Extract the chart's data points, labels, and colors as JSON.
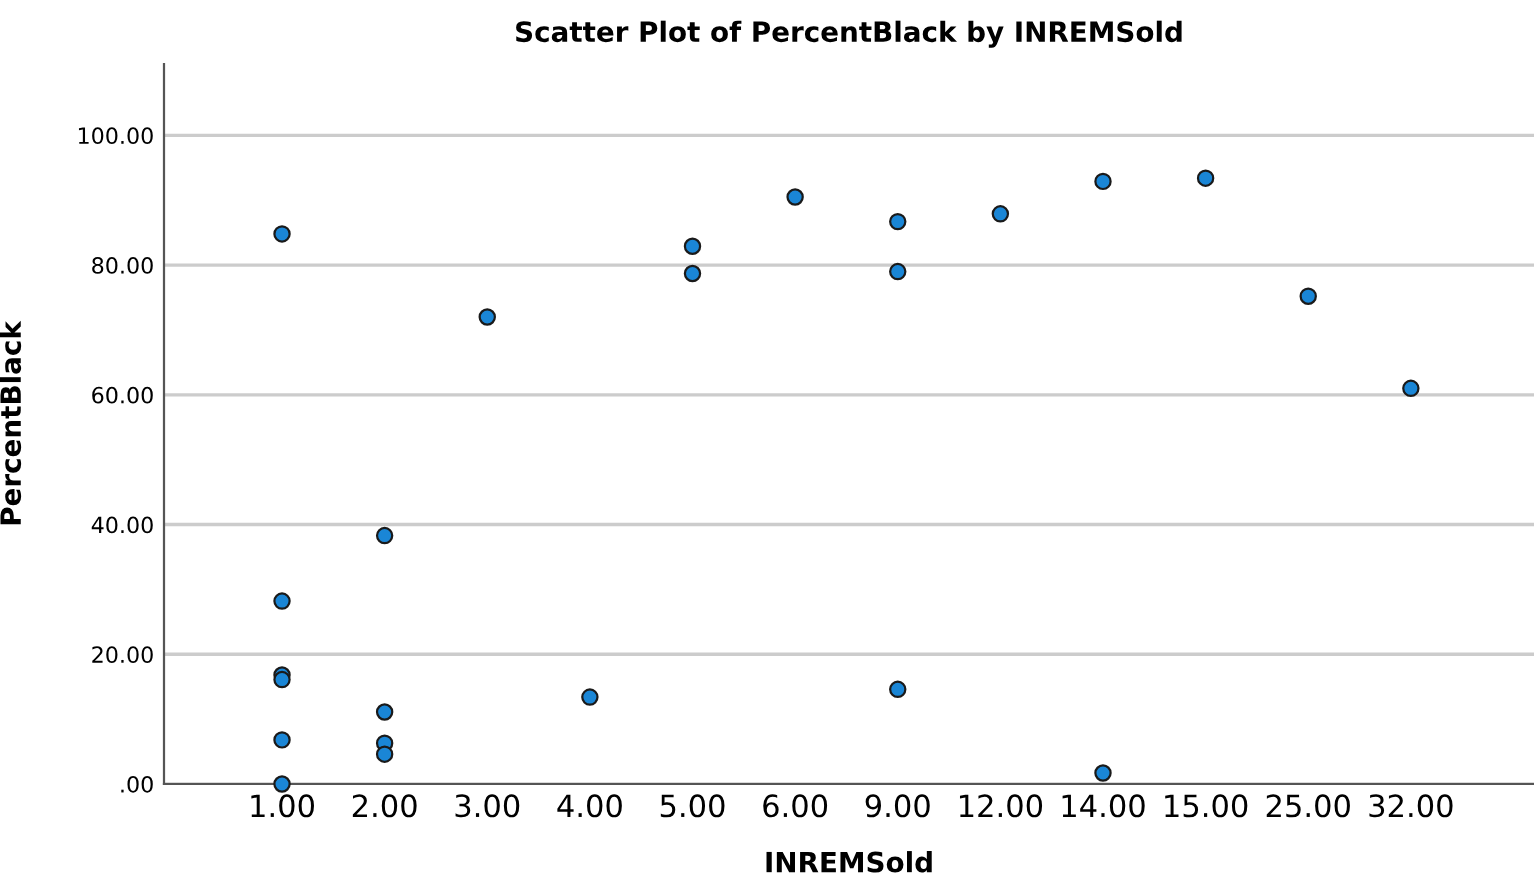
{
  "chart_data": {
    "type": "scatter",
    "title": "Scatter Plot of PercentBlack by INREMSold",
    "xlabel": "INREMSold",
    "ylabel": "PercentBlack",
    "categories": [
      "1.00",
      "2.00",
      "3.00",
      "4.00",
      "5.00",
      "6.00",
      "9.00",
      "12.00",
      "14.00",
      "15.00",
      "25.00",
      "32.00"
    ],
    "series": [
      {
        "color": "#1a86d6",
        "x": [
          "1.00",
          "1.00",
          "1.00",
          "1.00",
          "1.00",
          "1.00",
          "2.00",
          "2.00",
          "2.00",
          "2.00",
          "3.00",
          "4.00",
          "5.00",
          "5.00",
          "6.00",
          "9.00",
          "9.00",
          "9.00",
          "12.00",
          "14.00",
          "14.00",
          "15.00",
          "25.00",
          "32.00"
        ],
        "values": [
          84.8,
          28.2,
          16.8,
          16.1,
          6.8,
          0,
          38.3,
          11.1,
          6.3,
          4.6,
          72.0,
          13.4,
          82.9,
          78.7,
          90.5,
          86.7,
          79.0,
          14.6,
          87.9,
          92.9,
          1.7,
          93.4,
          75.2,
          61.0
        ]
      }
    ],
    "ylim": [
      0,
      111
    ],
    "yticks": [
      {
        "value": 0,
        "label": ".00"
      },
      {
        "value": 20,
        "label": "20.00"
      },
      {
        "value": 40,
        "label": "40.00"
      },
      {
        "value": 60,
        "label": "60.00"
      },
      {
        "value": 80,
        "label": "80.00"
      },
      {
        "value": 100,
        "label": "100.00"
      }
    ],
    "grid": "y",
    "marker": "circle"
  }
}
